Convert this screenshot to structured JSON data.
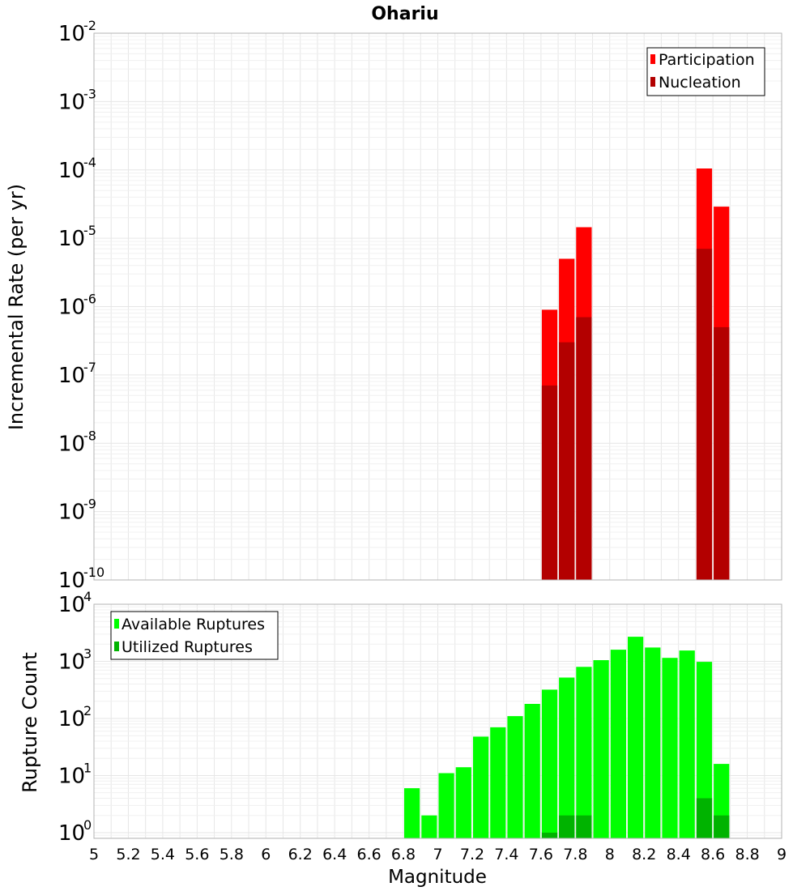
{
  "chart_data": [
    {
      "type": "bar",
      "title": "Ohariu",
      "xlabel": "",
      "ylabel": "Incremental Rate (per yr)",
      "xlim": [
        5,
        9
      ],
      "ylim_exp": [
        -10,
        -2
      ],
      "y_scale": "log",
      "grid": true,
      "legend_position": "top-right",
      "bin_width": 0.1,
      "series": [
        {
          "name": "Participation",
          "color": "#ff0000",
          "points": [
            {
              "x": 7.65,
              "y": 9e-07
            },
            {
              "x": 7.75,
              "y": 5e-06
            },
            {
              "x": 7.85,
              "y": 1.45e-05
            },
            {
              "x": 8.55,
              "y": 0.000105
            },
            {
              "x": 8.65,
              "y": 2.9e-05
            }
          ]
        },
        {
          "name": "Nucleation",
          "color": "#b30000",
          "points": [
            {
              "x": 7.65,
              "y": 7e-08
            },
            {
              "x": 7.75,
              "y": 3e-07
            },
            {
              "x": 7.85,
              "y": 7e-07
            },
            {
              "x": 8.55,
              "y": 7e-06
            },
            {
              "x": 8.65,
              "y": 5e-07
            }
          ]
        }
      ]
    },
    {
      "type": "bar",
      "title": "",
      "xlabel": "Magnitude",
      "ylabel": "Rupture Count",
      "xlim": [
        5,
        9
      ],
      "ylim_exp": [
        -0.1,
        4
      ],
      "y_scale": "log",
      "grid": true,
      "legend_position": "top-left",
      "bin_width": 0.1,
      "series": [
        {
          "name": "Available Ruptures",
          "color": "#00ff00",
          "points": [
            {
              "x": 6.85,
              "y": 6
            },
            {
              "x": 6.95,
              "y": 2
            },
            {
              "x": 7.05,
              "y": 11
            },
            {
              "x": 7.15,
              "y": 14
            },
            {
              "x": 7.25,
              "y": 48
            },
            {
              "x": 7.35,
              "y": 70
            },
            {
              "x": 7.45,
              "y": 110
            },
            {
              "x": 7.55,
              "y": 180
            },
            {
              "x": 7.65,
              "y": 320
            },
            {
              "x": 7.75,
              "y": 520
            },
            {
              "x": 7.85,
              "y": 800
            },
            {
              "x": 7.95,
              "y": 1050
            },
            {
              "x": 8.05,
              "y": 1600
            },
            {
              "x": 8.15,
              "y": 2700
            },
            {
              "x": 8.25,
              "y": 1750
            },
            {
              "x": 8.35,
              "y": 1150
            },
            {
              "x": 8.45,
              "y": 1550
            },
            {
              "x": 8.55,
              "y": 980
            },
            {
              "x": 8.65,
              "y": 16
            }
          ]
        },
        {
          "name": "Utilized Ruptures",
          "color": "#00b300",
          "points": [
            {
              "x": 7.65,
              "y": 1
            },
            {
              "x": 7.75,
              "y": 2
            },
            {
              "x": 7.85,
              "y": 2
            },
            {
              "x": 8.55,
              "y": 4
            },
            {
              "x": 8.65,
              "y": 2
            }
          ]
        }
      ]
    }
  ],
  "x_ticks": [
    "5",
    "5.2",
    "5.4",
    "5.6",
    "5.8",
    "6",
    "6.2",
    "6.4",
    "6.6",
    "6.8",
    "7",
    "7.2",
    "7.4",
    "7.6",
    "7.8",
    "8",
    "8.2",
    "8.4",
    "8.6",
    "8.8",
    "9"
  ],
  "top_y_ticks": [
    {
      "base": "10",
      "exp": "-10"
    },
    {
      "base": "10",
      "exp": "-9"
    },
    {
      "base": "10",
      "exp": "-8"
    },
    {
      "base": "10",
      "exp": "-7"
    },
    {
      "base": "10",
      "exp": "-6"
    },
    {
      "base": "10",
      "exp": "-5"
    },
    {
      "base": "10",
      "exp": "-4"
    },
    {
      "base": "10",
      "exp": "-3"
    },
    {
      "base": "10",
      "exp": "-2"
    }
  ],
  "bottom_y_ticks": [
    {
      "base": "10",
      "exp": "0"
    },
    {
      "base": "10",
      "exp": "1"
    },
    {
      "base": "10",
      "exp": "2"
    },
    {
      "base": "10",
      "exp": "3"
    },
    {
      "base": "10",
      "exp": "4"
    }
  ]
}
